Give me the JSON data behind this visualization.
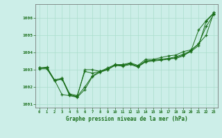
{
  "bg_color": "#cceee8",
  "grid_color": "#aaddcc",
  "line_color": "#1a6e1a",
  "marker_color": "#1a6e1a",
  "xlabel": "Graphe pression niveau de la mer (hPa)",
  "xlabel_color": "#1a6e1a",
  "xlim": [
    -0.5,
    23.5
  ],
  "ylim": [
    1000.8,
    1006.8
  ],
  "yticks": [
    1001,
    1002,
    1003,
    1004,
    1005,
    1006
  ],
  "xticks": [
    0,
    1,
    2,
    3,
    4,
    5,
    6,
    7,
    8,
    9,
    10,
    11,
    12,
    13,
    14,
    15,
    16,
    17,
    18,
    19,
    20,
    21,
    22,
    23
  ],
  "series": [
    [
      1003.1,
      1003.1,
      1002.4,
      1002.5,
      1001.6,
      1001.5,
      1002.9,
      1002.8,
      1002.9,
      1003.0,
      1003.3,
      1003.25,
      1003.35,
      1003.2,
      1003.5,
      1003.55,
      1003.6,
      1003.65,
      1003.65,
      1003.8,
      1004.1,
      1004.5,
      1005.5,
      1006.2
    ],
    [
      1003.05,
      1003.05,
      1002.35,
      1002.45,
      1001.5,
      1001.4,
      1001.85,
      1002.6,
      1002.85,
      1003.0,
      1003.25,
      1003.2,
      1003.3,
      1003.15,
      1003.45,
      1003.5,
      1003.55,
      1003.6,
      1003.7,
      1003.85,
      1004.05,
      1004.4,
      1005.8,
      1006.25
    ],
    [
      1003.1,
      1003.15,
      1002.4,
      1001.55,
      1001.5,
      1001.45,
      1003.0,
      1003.0,
      1002.9,
      1003.1,
      1003.3,
      1003.3,
      1003.4,
      1003.25,
      1003.6,
      1003.6,
      1003.7,
      1003.8,
      1003.85,
      1004.05,
      1004.15,
      1004.5,
      1005.0,
      1006.3
    ],
    [
      1003.1,
      1003.1,
      1002.4,
      1002.5,
      1001.55,
      1001.45,
      1002.0,
      1002.65,
      1002.9,
      1003.05,
      1003.25,
      1003.25,
      1003.35,
      1003.2,
      1003.5,
      1003.55,
      1003.6,
      1003.65,
      1003.75,
      1003.9,
      1004.1,
      1005.3,
      1005.85,
      1006.3
    ]
  ]
}
